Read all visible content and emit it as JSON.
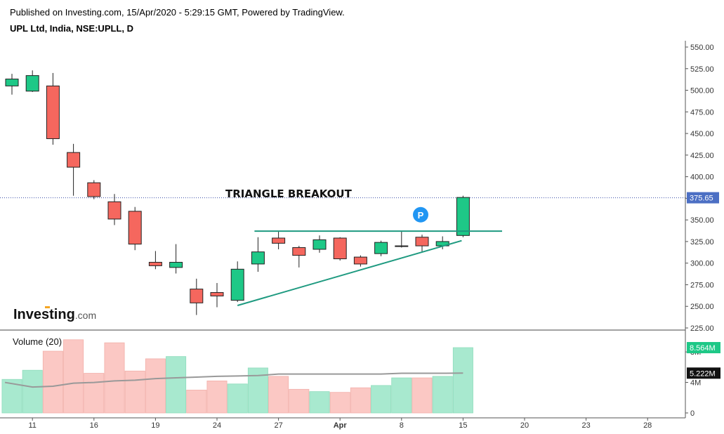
{
  "header": {
    "published": "Published on Investing.com, 15/Apr/2020 - 5:29:15 GMT, Powered by TradingView.",
    "symbol": "UPL Ltd, India, NSE:UPLL, D"
  },
  "watermark": {
    "brand": "Investing",
    "suffix": ".com"
  },
  "annotation": {
    "text": "TRIANGLE BREAKOUT",
    "marker": "P"
  },
  "colors": {
    "up": "#1ec887",
    "down": "#f5675e",
    "up_volume": "#a8e9cf",
    "down_volume": "#fbc8c4",
    "trendline": "#1e9a80",
    "ma": "#999999",
    "last_price_label": "#4c6fc4"
  },
  "chart_data": [
    {
      "type": "candlestick",
      "title": "UPL Ltd, India, NSE:UPLL, D",
      "x_tick_labels": [
        "11",
        "16",
        "19",
        "24",
        "27",
        "Apr",
        "8",
        "15",
        "20",
        "23",
        "28"
      ],
      "y_tick_labels": [
        "550.00",
        "525.00",
        "500.00",
        "475.00",
        "450.00",
        "425.00",
        "400.00",
        "375.00",
        "350.00",
        "325.00",
        "300.00",
        "275.00",
        "250.00",
        "225.00"
      ],
      "ylim": [
        225,
        550
      ],
      "last_price": {
        "label": "375.65",
        "value": 375.65
      },
      "candles": [
        {
          "date": "10-Mar",
          "open": 505,
          "high": 519,
          "low": 495,
          "close": 513
        },
        {
          "date": "11-Mar",
          "open": 499,
          "high": 523,
          "low": 498,
          "close": 517
        },
        {
          "date": "12-Mar",
          "open": 505,
          "high": 520,
          "low": 437,
          "close": 444
        },
        {
          "date": "13-Mar",
          "open": 428,
          "high": 438,
          "low": 378,
          "close": 411
        },
        {
          "date": "16-Mar",
          "open": 393,
          "high": 396,
          "low": 374,
          "close": 377
        },
        {
          "date": "17-Mar",
          "open": 371,
          "high": 380,
          "low": 344,
          "close": 351
        },
        {
          "date": "18-Mar",
          "open": 360,
          "high": 365,
          "low": 315,
          "close": 322
        },
        {
          "date": "19-Mar",
          "open": 301,
          "high": 314,
          "low": 293,
          "close": 297
        },
        {
          "date": "20-Mar",
          "open": 295,
          "high": 322,
          "low": 288,
          "close": 301
        },
        {
          "date": "23-Mar",
          "open": 270,
          "high": 282,
          "low": 240,
          "close": 254
        },
        {
          "date": "24-Mar",
          "open": 266,
          "high": 277,
          "low": 249,
          "close": 262
        },
        {
          "date": "25-Mar",
          "open": 257,
          "high": 302,
          "low": 255,
          "close": 293
        },
        {
          "date": "26-Mar",
          "open": 299,
          "high": 330,
          "low": 290,
          "close": 313
        },
        {
          "date": "27-Mar",
          "open": 329,
          "high": 337,
          "low": 316,
          "close": 323
        },
        {
          "date": "30-Mar",
          "open": 318,
          "high": 320,
          "low": 295,
          "close": 309
        },
        {
          "date": "31-Mar",
          "open": 316,
          "high": 332,
          "low": 312,
          "close": 327
        },
        {
          "date": "1-Apr",
          "open": 329,
          "high": 330,
          "low": 303,
          "close": 305
        },
        {
          "date": "3-Apr",
          "open": 307,
          "high": 309,
          "low": 296,
          "close": 299
        },
        {
          "date": "6-Apr",
          "open": 311,
          "high": 326,
          "low": 308,
          "close": 324
        },
        {
          "date": "7-Apr",
          "open": 320,
          "high": 337,
          "low": 318,
          "close": 320
        },
        {
          "date": "8-Apr",
          "open": 330,
          "high": 333,
          "low": 313,
          "close": 320
        },
        {
          "date": "9-Apr",
          "open": 320,
          "high": 331,
          "low": 316,
          "close": 325
        },
        {
          "date": "13-Apr",
          "open": 332,
          "high": 378,
          "low": 330,
          "close": 376
        }
      ]
    },
    {
      "type": "bar",
      "title": "Volume (20)",
      "y_tick_labels": [
        "0",
        "4M",
        "8M"
      ],
      "ylim": [
        0,
        10.5
      ],
      "last_volume": {
        "label": "8.564M",
        "value": 8.564
      },
      "ma_value": {
        "label": "5.222M",
        "value": 5.222
      },
      "series": [
        {
          "name": "Volume",
          "values": [
            4.4,
            5.6,
            8.1,
            9.6,
            5.2,
            9.2,
            5.5,
            7.1,
            7.4,
            3.0,
            4.2,
            3.8,
            5.9,
            4.8,
            3.1,
            2.8,
            2.7,
            3.3,
            3.6,
            4.6,
            4.6,
            4.8,
            8.564
          ]
        },
        {
          "name": "MA",
          "values": [
            4.0,
            3.4,
            3.5,
            3.9,
            4.0,
            4.2,
            4.3,
            4.5,
            4.6,
            4.7,
            4.8,
            4.85,
            4.9,
            5.1,
            5.1,
            5.1,
            5.1,
            5.1,
            5.1,
            5.2,
            5.2,
            5.2,
            5.222
          ]
        }
      ]
    }
  ]
}
